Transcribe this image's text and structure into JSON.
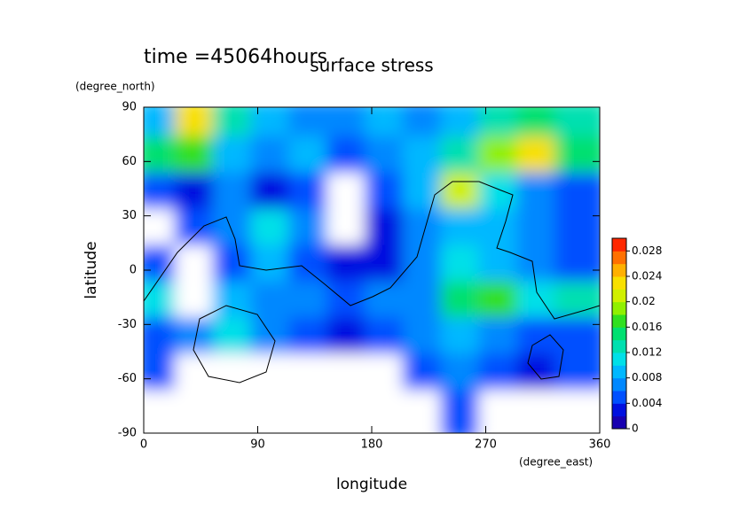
{
  "chart_data": {
    "type": "contour",
    "title": "surface stress",
    "subtitle": "time =45064hours",
    "xlabel": "longitude",
    "xunit": "(degree_east)",
    "ylabel": "latitude",
    "yunit": "(degree_north)",
    "xlim": [
      0,
      360
    ],
    "xticks": [
      0,
      90,
      180,
      270,
      360
    ],
    "ylim": [
      -90,
      90
    ],
    "yticks": [
      -90,
      -60,
      -30,
      0,
      30,
      60,
      90
    ],
    "x": [
      15,
      45,
      75,
      105,
      135,
      165,
      195,
      225,
      255,
      285,
      315,
      345
    ],
    "y": [
      80,
      60,
      40,
      20,
      0,
      -20,
      -40,
      -60,
      -80
    ],
    "z": [
      [
        0.008,
        0.022,
        0.012,
        0.008,
        0.006,
        0.006,
        0.008,
        0.006,
        0.008,
        0.012,
        0.014,
        0.012
      ],
      [
        0.014,
        0.016,
        0.008,
        0.006,
        0.008,
        0.004,
        0.006,
        0.008,
        0.012,
        0.018,
        0.022,
        0.014
      ],
      [
        0.004,
        0.002,
        0.006,
        0.002,
        0.004,
        0,
        0.004,
        0.008,
        0.02,
        0.01,
        0.006,
        0.004
      ],
      [
        0,
        0.004,
        0.006,
        0.01,
        0.006,
        0,
        0.002,
        0.006,
        0.008,
        0.008,
        0.006,
        0.004
      ],
      [
        0.004,
        0,
        0.004,
        0.008,
        0.004,
        0.002,
        0.002,
        0.006,
        0.01,
        0.008,
        0.006,
        0.004
      ],
      [
        0.01,
        0,
        0.008,
        0.006,
        0.006,
        0.004,
        0.006,
        0.006,
        0.014,
        0.016,
        0.01,
        0.012
      ],
      [
        0.004,
        0.006,
        0.01,
        0.006,
        0.004,
        0.002,
        0.004,
        0.006,
        0.008,
        0.006,
        0.004,
        0.004
      ],
      [
        0.004,
        0,
        0,
        0,
        0,
        0,
        0,
        0.004,
        0.006,
        0.004,
        0.002,
        0.004
      ],
      [
        0,
        0,
        0,
        0,
        0,
        0,
        0,
        0,
        0.004,
        0,
        0,
        0
      ]
    ],
    "clim": [
      0,
      0.03
    ],
    "cticks": [
      0,
      0.004,
      0.008,
      0.012,
      0.016,
      0.02,
      0.024,
      0.028
    ],
    "colormap": [
      "#1800b0",
      "#0010e0",
      "#0050ff",
      "#0088ff",
      "#00b8ff",
      "#00e0e8",
      "#00e0b0",
      "#00e070",
      "#30e020",
      "#90f000",
      "#d0f000",
      "#f8e000",
      "#ffb000",
      "#ff7000",
      "#ff2800"
    ]
  }
}
